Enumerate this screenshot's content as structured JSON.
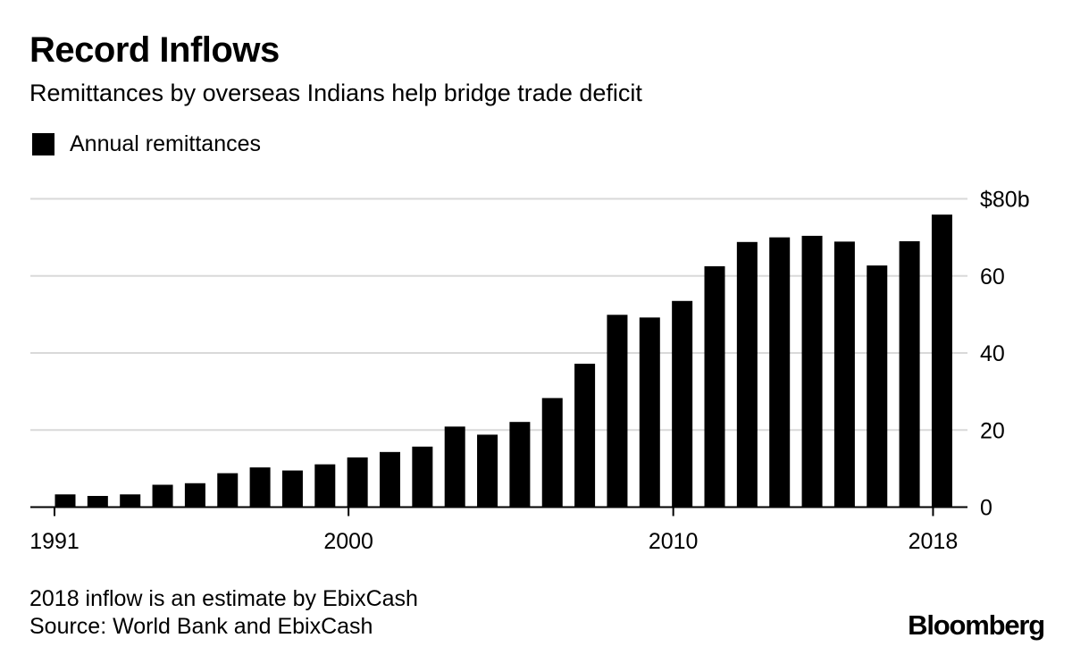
{
  "header": {
    "title": "Record Inflows",
    "subtitle": "Remittances by overseas Indians help bridge trade deficit"
  },
  "legend": {
    "label": "Annual remittances"
  },
  "footer": {
    "note": "2018 inflow is an estimate by EbixCash",
    "source": "Source: World Bank and EbixCash",
    "brand": "Bloomberg"
  },
  "colors": {
    "bar": "#000000",
    "grid": "#d9d9d9",
    "axis": "#000000"
  },
  "chart_data": {
    "type": "bar",
    "title": "Record Inflows",
    "subtitle": "Remittances by overseas Indians help bridge trade deficit",
    "xlabel": "",
    "ylabel": "",
    "grid": true,
    "legend_position": "top-left",
    "y_axis_position": "right",
    "ylim": [
      0,
      80
    ],
    "yticks": [
      0,
      20,
      40,
      60,
      80
    ],
    "ytick_labels": [
      "0",
      "20",
      "40",
      "60",
      "$80b"
    ],
    "xtick_labels": [
      {
        "year": 1991,
        "label": "1991"
      },
      {
        "year": 2000,
        "label": "2000"
      },
      {
        "year": 2010,
        "label": "2010"
      },
      {
        "year": 2018,
        "label": "2018"
      }
    ],
    "categories": [
      1991,
      1992,
      1993,
      1994,
      1995,
      1996,
      1997,
      1998,
      1999,
      2000,
      2001,
      2002,
      2003,
      2004,
      2005,
      2006,
      2007,
      2008,
      2009,
      2010,
      2011,
      2012,
      2013,
      2014,
      2015,
      2016,
      2017,
      2018
    ],
    "series": [
      {
        "name": "Annual remittances",
        "values": [
          3.3,
          2.9,
          3.3,
          5.8,
          6.2,
          8.8,
          10.3,
          9.5,
          11.1,
          12.9,
          14.3,
          15.7,
          20.9,
          18.8,
          22.1,
          28.3,
          37.2,
          49.9,
          49.2,
          53.5,
          62.5,
          68.8,
          70.0,
          70.4,
          68.9,
          62.7,
          69.0,
          75.9
        ]
      }
    ]
  }
}
